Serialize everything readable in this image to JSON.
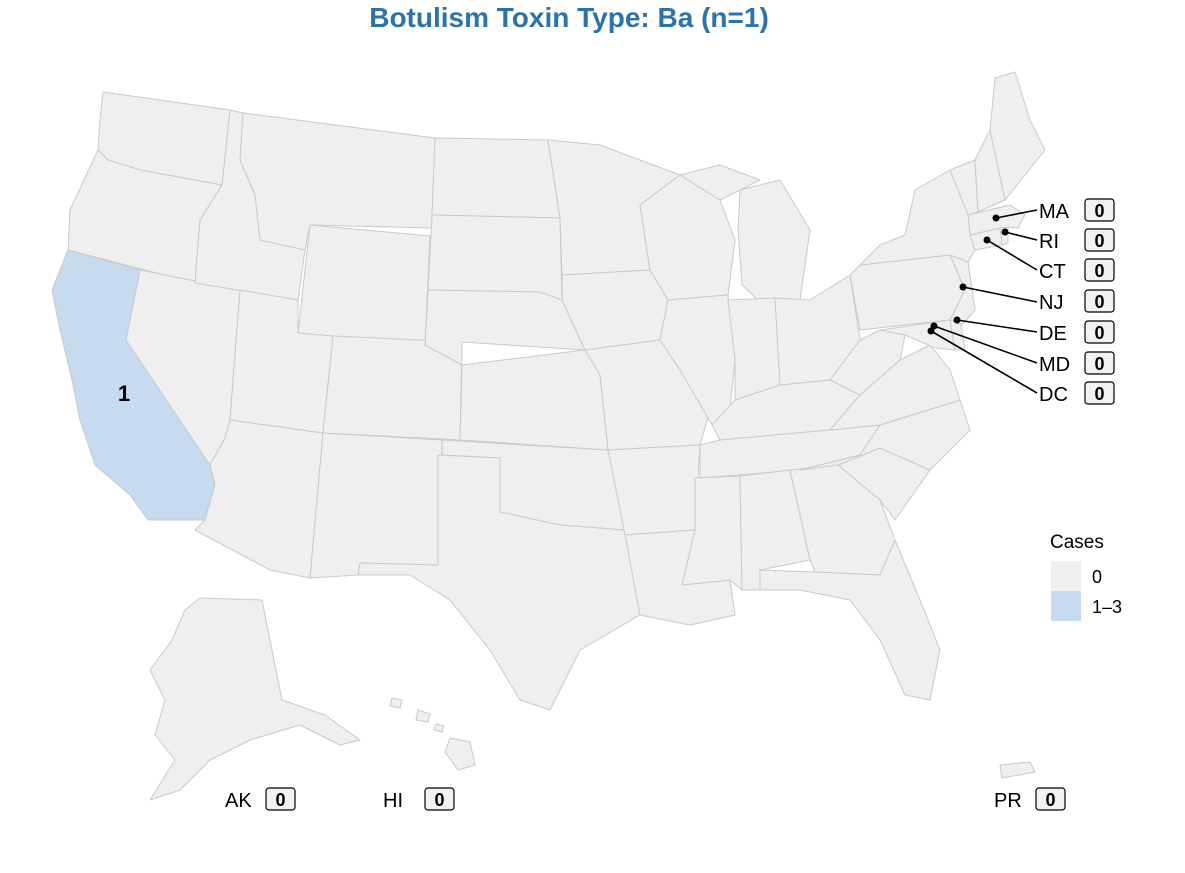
{
  "title": "Botulism Toxin Type: Ba (n=1)",
  "colors": {
    "zero": "#efefef",
    "low": "#c6daf0",
    "border": "#c9c9c9",
    "title": "#2b73a8"
  },
  "map_values": [
    {
      "state": "CA",
      "value": "1"
    }
  ],
  "callouts": [
    {
      "abbr": "MA",
      "value": "0"
    },
    {
      "abbr": "RI",
      "value": "0"
    },
    {
      "abbr": "CT",
      "value": "0"
    },
    {
      "abbr": "NJ",
      "value": "0"
    },
    {
      "abbr": "DE",
      "value": "0"
    },
    {
      "abbr": "MD",
      "value": "0"
    },
    {
      "abbr": "DC",
      "value": "0"
    }
  ],
  "territories": [
    {
      "abbr": "AK",
      "value": "0"
    },
    {
      "abbr": "HI",
      "value": "0"
    },
    {
      "abbr": "PR",
      "value": "0"
    }
  ],
  "legend": {
    "title": "Cases",
    "items": [
      {
        "label": "0",
        "color": "#efefef"
      },
      {
        "label": "1–3",
        "color": "#c6daf0"
      }
    ]
  }
}
